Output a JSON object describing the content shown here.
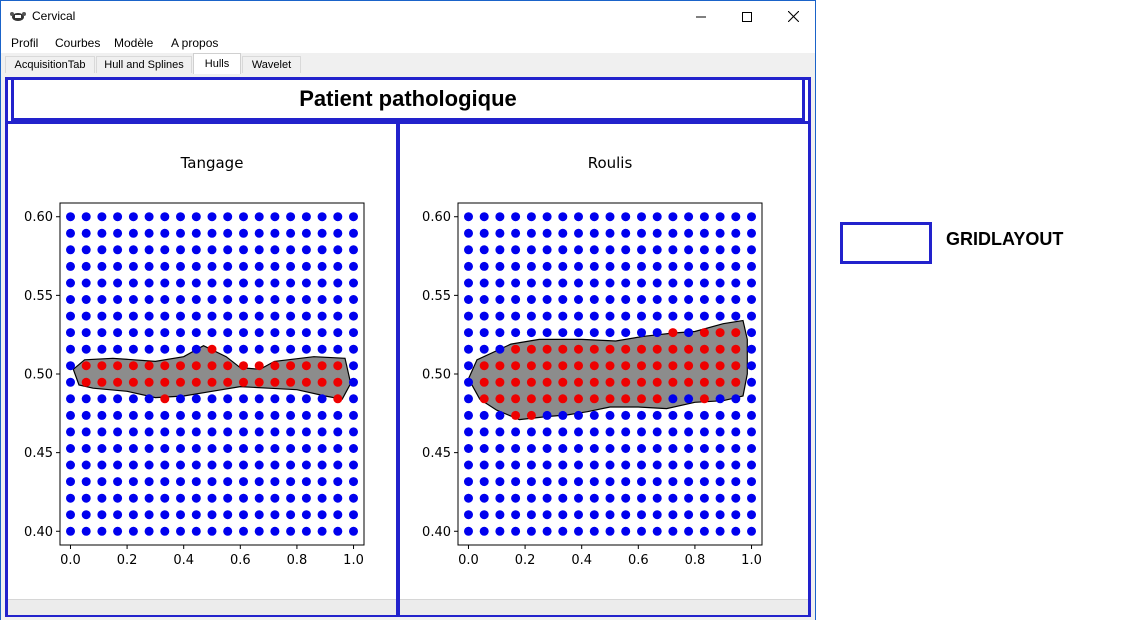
{
  "window": {
    "title": "Cervical",
    "icon": "cow-icon",
    "controls": {
      "minimize": "minimize-icon",
      "maximize": "maximize-icon",
      "close": "close-icon"
    }
  },
  "menu": {
    "items": [
      "Profil",
      "Courbes",
      "Modèle",
      "A propos"
    ]
  },
  "tabs": {
    "items": [
      "AcquisitionTab",
      "Hull and Splines",
      "Hulls",
      "Wavelet"
    ],
    "active": "Hulls"
  },
  "panel": {
    "title": "Patient pathologique"
  },
  "legend": {
    "label": "GRIDLAYOUT"
  },
  "colors": {
    "frame": "#2222cc",
    "grid_points": "#0000ee",
    "hull_points": "#ee0000",
    "hull_fill": "#8c8c8c"
  },
  "chart_data": [
    {
      "type": "scatter",
      "title": "Tangage",
      "xlim": [
        0.0,
        1.0
      ],
      "ylim": [
        0.4,
        0.6
      ],
      "x_ticks": [
        "0.0",
        "0.2",
        "0.4",
        "0.6",
        "0.8",
        "1.0"
      ],
      "y_ticks": [
        "0.60",
        "0.55",
        "0.50",
        "0.45",
        "0.40"
      ],
      "grid": {
        "x_start": 0.0,
        "x_end": 1.0,
        "x_count": 19,
        "y_start": 0.4,
        "y_end": 0.6,
        "y_count": 20
      },
      "hull": {
        "inside_rows": [
          {
            "y": 0.4947,
            "x_min": 0.02,
            "x_max": 0.99
          },
          {
            "y": 0.5053,
            "x_min": 0.02,
            "x_max": 0.98
          },
          {
            "y": 0.4842,
            "x_min": 0.3,
            "x_max": 0.34
          },
          {
            "y": 0.4842,
            "x_min": 0.93,
            "x_max": 0.97
          },
          {
            "y": 0.5158,
            "x_min": 0.46,
            "x_max": 0.5
          }
        ],
        "polygon": [
          [
            0.01,
            0.503
          ],
          [
            0.05,
            0.509
          ],
          [
            0.15,
            0.51
          ],
          [
            0.3,
            0.508
          ],
          [
            0.4,
            0.511
          ],
          [
            0.47,
            0.518
          ],
          [
            0.55,
            0.511
          ],
          [
            0.6,
            0.504
          ],
          [
            0.67,
            0.503
          ],
          [
            0.72,
            0.508
          ],
          [
            0.86,
            0.511
          ],
          [
            0.97,
            0.51
          ],
          [
            0.99,
            0.494
          ],
          [
            0.96,
            0.484
          ],
          [
            0.9,
            0.486
          ],
          [
            0.8,
            0.49
          ],
          [
            0.7,
            0.491
          ],
          [
            0.6,
            0.492
          ],
          [
            0.5,
            0.489
          ],
          [
            0.4,
            0.486
          ],
          [
            0.3,
            0.485
          ],
          [
            0.2,
            0.489
          ],
          [
            0.08,
            0.491
          ],
          [
            0.03,
            0.493
          ],
          [
            0.01,
            0.503
          ]
        ]
      }
    },
    {
      "type": "scatter",
      "title": "Roulis",
      "xlim": [
        0.0,
        1.0
      ],
      "ylim": [
        0.4,
        0.6
      ],
      "x_ticks": [
        "0.0",
        "0.2",
        "0.4",
        "0.6",
        "0.8",
        "1.0"
      ],
      "y_ticks": [
        "0.60",
        "0.55",
        "0.50",
        "0.45",
        "0.40"
      ],
      "grid": {
        "x_start": 0.0,
        "x_end": 1.0,
        "x_count": 19,
        "y_start": 0.4,
        "y_end": 0.6,
        "y_count": 20
      },
      "hull": {
        "inside_rows": [
          {
            "y": 0.5263,
            "x_min": 0.72,
            "x_max": 0.75
          },
          {
            "y": 0.5263,
            "x_min": 0.82,
            "x_max": 0.97
          },
          {
            "y": 0.5158,
            "x_min": 0.14,
            "x_max": 0.97
          },
          {
            "y": 0.5053,
            "x_min": 0.04,
            "x_max": 0.97
          },
          {
            "y": 0.4947,
            "x_min": 0.04,
            "x_max": 0.97
          },
          {
            "y": 0.4842,
            "x_min": 0.04,
            "x_max": 0.7
          },
          {
            "y": 0.4842,
            "x_min": 0.82,
            "x_max": 0.86
          },
          {
            "y": 0.4737,
            "x_min": 0.14,
            "x_max": 0.23
          }
        ],
        "polygon": [
          [
            0.0,
            0.497
          ],
          [
            0.03,
            0.509
          ],
          [
            0.15,
            0.519
          ],
          [
            0.25,
            0.522
          ],
          [
            0.4,
            0.522
          ],
          [
            0.52,
            0.521
          ],
          [
            0.62,
            0.524
          ],
          [
            0.72,
            0.526
          ],
          [
            0.8,
            0.527
          ],
          [
            0.9,
            0.532
          ],
          [
            0.97,
            0.534
          ],
          [
            0.985,
            0.522
          ],
          [
            0.985,
            0.5
          ],
          [
            0.97,
            0.486
          ],
          [
            0.9,
            0.483
          ],
          [
            0.8,
            0.482
          ],
          [
            0.7,
            0.478
          ],
          [
            0.6,
            0.479
          ],
          [
            0.5,
            0.479
          ],
          [
            0.42,
            0.476
          ],
          [
            0.35,
            0.474
          ],
          [
            0.28,
            0.473
          ],
          [
            0.18,
            0.471
          ],
          [
            0.1,
            0.477
          ],
          [
            0.04,
            0.484
          ],
          [
            0.0,
            0.497
          ]
        ]
      }
    }
  ]
}
